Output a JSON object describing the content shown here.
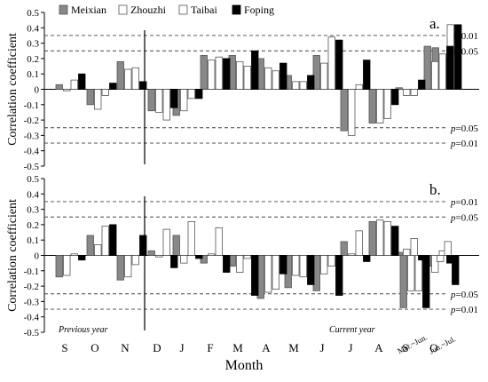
{
  "chart_data": [
    {
      "type": "bar",
      "panel_label": "a.",
      "ylabel": "Correlation coefficient",
      "ylim": [
        -0.5,
        0.5
      ],
      "yticks": [
        0.5,
        0.4,
        0.3,
        0.2,
        0.1,
        0,
        -0.1,
        -0.2,
        -0.3,
        -0.4,
        -0.5
      ],
      "ytick_labels": [
        "0.5",
        "0.4",
        "0.3",
        "0.2",
        "0.1",
        "0",
        "-0.1",
        "-0.2",
        "-0.3",
        "-0.4",
        "-0.5"
      ],
      "grid": false,
      "legend": [
        "Meixian",
        "Zhouzhi",
        "Taibai",
        "Foping"
      ],
      "legend_position": "top-left",
      "significance_lines": [
        {
          "value": 0.35,
          "label_p": "p",
          "label_rest": "=0.01"
        },
        {
          "value": 0.25,
          "label_p": "p",
          "label_rest": "=0.05"
        },
        {
          "value": -0.25,
          "label_p": "p",
          "label_rest": "=0.05"
        },
        {
          "value": -0.35,
          "label_p": "p",
          "label_rest": "=0.01"
        }
      ],
      "series": [
        {
          "name": "Meixian",
          "values": [
            0.03,
            -0.1,
            0.18,
            -0.14,
            -0.17,
            0.22,
            0.22,
            0.2,
            0.09,
            0.22,
            -0.27,
            -0.22,
            0.01,
            0.28,
            0.27
          ]
        },
        {
          "name": "Zhouzhi",
          "values": [
            -0.01,
            -0.13,
            0.13,
            -0.15,
            -0.14,
            0.19,
            0.18,
            0.14,
            0.05,
            0.17,
            -0.3,
            -0.22,
            -0.04,
            0.18,
            0.2
          ]
        },
        {
          "name": "Taibai",
          "values": [
            0.06,
            -0.04,
            0.14,
            -0.2,
            -0.06,
            0.21,
            0.15,
            0.12,
            0.05,
            0.34,
            0.03,
            -0.19,
            -0.04,
            0.23,
            0.42
          ]
        },
        {
          "name": "Foping",
          "values": [
            0.1,
            0.04,
            0.05,
            -0.12,
            -0.06,
            0.2,
            0.25,
            0.17,
            0.09,
            0.32,
            0.19,
            -0.1,
            0.06,
            0.28,
            0.42
          ]
        }
      ]
    },
    {
      "type": "bar",
      "panel_label": "b.",
      "ylabel": "Correlation coefficient",
      "ylim": [
        -0.5,
        0.5
      ],
      "yticks": [
        0.5,
        0.4,
        0.3,
        0.2,
        0.1,
        0,
        -0.1,
        -0.2,
        -0.3,
        -0.4,
        -0.5
      ],
      "ytick_labels": [
        "0.5",
        "0.4",
        "0.3",
        "0.2",
        "0.1",
        "0",
        "-0.1",
        "-0.2",
        "-0.3",
        "-0.4",
        "-0.5"
      ],
      "grid": false,
      "xlabel": "Month",
      "x_categories": [
        "S",
        "O",
        "N",
        "D",
        "J",
        "F",
        "M",
        "A",
        "M",
        "J",
        "J",
        "A",
        "S",
        "O",
        "Mar.~Jun.",
        "Jun.~Jul."
      ],
      "x_groups": [
        "Previous year",
        "Current year"
      ],
      "significance_lines": [
        {
          "value": 0.35,
          "label_p": "p",
          "label_rest": "=0.01"
        },
        {
          "value": 0.25,
          "label_p": "p",
          "label_rest": "=0.05"
        },
        {
          "value": -0.25,
          "label_p": "p",
          "label_rest": "=0.05"
        },
        {
          "value": -0.35,
          "label_p": "p",
          "label_rest": "=0.01"
        }
      ],
      "series": [
        {
          "name": "Meixian",
          "values": [
            -0.14,
            0.13,
            -0.16,
            0.03,
            0.13,
            -0.05,
            -0.07,
            -0.28,
            -0.21,
            -0.23,
            0.09,
            0.22,
            0.02,
            -0.05,
            -0.34,
            -0.07
          ]
        },
        {
          "name": "Zhouzhi",
          "values": [
            -0.13,
            0.07,
            -0.14,
            -0.01,
            -0.05,
            0.01,
            -0.11,
            -0.24,
            -0.13,
            -0.12,
            0.01,
            0.23,
            0.04,
            -0.11,
            -0.23,
            -0.04
          ]
        },
        {
          "name": "Taibai",
          "values": [
            0.01,
            0.19,
            -0.06,
            0.17,
            0.22,
            0.18,
            -0.02,
            -0.22,
            -0.14,
            -0.07,
            0.16,
            0.22,
            0.11,
            0.03,
            -0.23,
            0.09
          ]
        },
        {
          "name": "Foping",
          "values": [
            -0.03,
            0.2,
            0.13,
            -0.08,
            -0.02,
            -0.11,
            -0.26,
            -0.12,
            -0.19,
            -0.26,
            -0.04,
            0.19,
            -0.03,
            -0.05,
            -0.34,
            -0.19
          ]
        }
      ]
    }
  ],
  "colors": {
    "Meixian": "#888888",
    "Zhouzhi": "#ffffff",
    "Taibai": "#ffffff",
    "Foping": "#000000",
    "bar_outline": "#555555",
    "axis": "#000000",
    "dashed_line": "#444444"
  }
}
